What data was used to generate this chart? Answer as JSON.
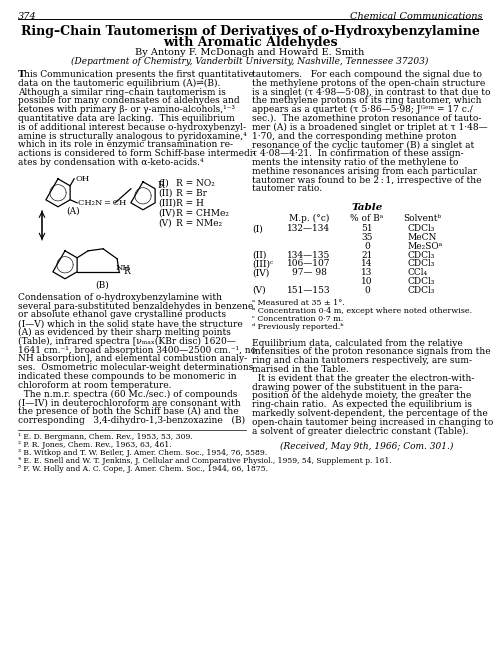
{
  "page_number": "374",
  "journal_name": "Chemical Communications",
  "title_line1": "Ring–Chain Tautomerism of Derivatives of o-Hydroxybenzylamine",
  "title_line2": "with Aromatic Aldehydes",
  "authors": "By Antony F. McDonagh and Howard E. Smith",
  "affiliation": "(Department of Chemistry, Vanderbilt University, Nashville, Tennessee 37203)",
  "body_left_col": [
    "This Communication presents the first quantitative",
    "data on the tautomeric equilibrium (A)⇌(B).",
    "Although a similar ring–chain tautomerism is",
    "possible for many condensates of aldehydes and",
    "ketones with primary β- or γ-amino-alcohols,¹⁻³",
    "quantitative data are lacking.  This equilibrium",
    "is of additional interest because o-hydroxybenzyl-",
    "amine is structurally analogous to pyridoxamine,⁴",
    "which in its role in enzymic transamination re-",
    "actions is considered to form Schiff-base intermedi-",
    "ates by condensation with α-keto-acids.⁴"
  ],
  "body_right_col": [
    "tautomers.   For each compound the signal due to",
    "the methylene protons of the open-chain structure",
    "is a singlet (τ 4·98—5·08), in contrast to that due to",
    "the methylene protons of its ring tautomer, which",
    "appears as a quartet (τ 5·86—5·98; Jᴳᵉᵐ = 17 c./",
    "sec.).  The azomethine proton resonance of tauto-",
    "mer (A) is a broadened singlet or triplet at τ 1·48—",
    "1·70, and the corresponding methine proton",
    "resonance of the cyclic tautomer (B) a singlet at",
    "τ 4·08—4·21.  In confirmation of these assign-",
    "ments the intensity ratio of the methylene to",
    "methine resonances arising from each particular",
    "tautomer was found to be 2 : 1, irrespective of the",
    "tautomer ratio."
  ],
  "table_title": "Table",
  "table_headers": [
    "",
    "M.p. (°c)",
    "% of Bᵃ",
    "Solventᵇ"
  ],
  "table_rows": [
    [
      "(I)",
      "132—134",
      "51",
      "CDCl₃"
    ],
    [
      "",
      "",
      "35",
      "MeCN"
    ],
    [
      "",
      "",
      "0",
      "Me₂SOᵃ"
    ],
    [
      "(II)",
      "134—135",
      "21",
      "CDCl₃"
    ],
    [
      "(III)ᶜ",
      "106—107",
      "14",
      "CDCl₃"
    ],
    [
      "(IV)",
      "97— 98",
      "13",
      "CCl₄"
    ],
    [
      "",
      "",
      "10",
      "CDCl₃"
    ],
    [
      "(V)",
      "151—153",
      "0",
      "CDCl₃"
    ]
  ],
  "table_footnotes": [
    "ᵃ Measured at 35 ± 1°.",
    "ᵇ Concentration 0·4 m, except where noted otherwise.",
    "ᶜ Concentration 0·7 m.",
    "ᵈ Previously reported.ᵇ"
  ],
  "body_right_col2": [
    "Equilibrium data, calculated from the relative",
    "intensities of the proton resonance signals from the",
    "ring and chain tautomers respectively, are sum-",
    "marised in the Table.",
    "  It is evident that the greater the electron-with-",
    "drawing power of the substituent in the para-",
    "position of the aldehyde moiety, the greater the",
    "ring-chain ratio.  As expected the equilibrium is",
    "markedly solvent-dependent, the percentage of the",
    "open-chain tautomer being increased in changing to",
    "a solvent of greater dielectric constant (Table)."
  ],
  "received": "(Received, May 9th, 1966; Com. 301.)",
  "condensation_text": [
    "Condensation of o-hydroxybenzylamine with",
    "several para-substituted benzaldehydes in benzene",
    "or absolute ethanol gave crystalline products",
    "(I—V) which in the solid state have the structure",
    "(A) as evidenced by their sharp melting points",
    "(Table), infrared spectra [νₘₐₓ(KBr disc) 1620—",
    "1641 cm.⁻¹, broad absorption 3400—2500 cm.⁻¹, no",
    "NH absorption], and elemental combustion analy-",
    "ses.  Osmometric molecular-weight determinations",
    "indicated these compounds to be monomeric in",
    "chloroform at room temperature.",
    "  The n.m.r. spectra (60 Mc./sec.) of compounds",
    "(I—IV) in deuterochloroform are consonant with",
    "the presence of both the Schiff base (A) and the",
    "corresponding   3,4-dihydro-1,3-benzoxazine   (B)"
  ],
  "references": [
    "¹ E. D. Bergmann, Chem. Rev., 1953, 53, 309.",
    "² P. R. Jones, Chem. Rev., 1963, 63, 461.",
    "³ B. Witkop and T. W. Beiler, J. Amer. Chem. Soc., 1954, 76, 5589.",
    "⁴ E. E. Snell and W. T. Jenkins, J. Cellular and Comparative Physiol., 1959, 54, Supplement p. 161.",
    "⁵ F. W. Holly and A. C. Cope, J. Amer. Chem. Soc., 1944, 66, 1875."
  ],
  "struct_labels": [
    [
      "(I)",
      "R = NO₂"
    ],
    [
      "(II)",
      "R = Br"
    ],
    [
      "(III)",
      "R = H"
    ],
    [
      "(IV)",
      "R = CHMe₂"
    ],
    [
      "(V)",
      "R = NMe₂"
    ]
  ],
  "bg_color": "#ffffff",
  "text_color": "#000000",
  "lmargin": 18,
  "rmargin": 482,
  "col_sep": 248,
  "body_font": 6.5,
  "title_font": 9.0,
  "hdr_font": 7.0,
  "ref_font": 5.5
}
